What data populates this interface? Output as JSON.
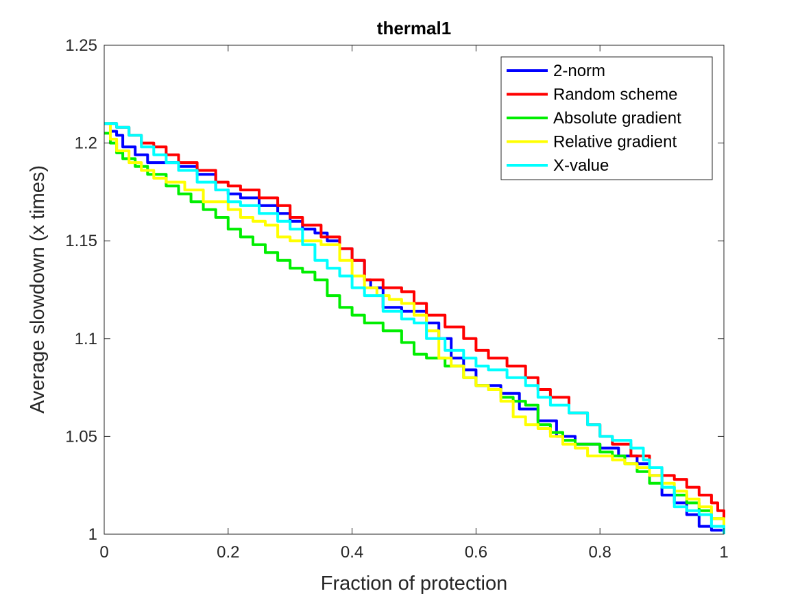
{
  "chart_data": {
    "type": "line",
    "title": "thermal1",
    "xlabel": "Fraction of protection",
    "ylabel": "Average slowdown (x times)",
    "xlim": [
      0,
      1
    ],
    "ylim": [
      1,
      1.25
    ],
    "xticks": [
      0,
      0.2,
      0.4,
      0.6,
      0.8,
      1
    ],
    "xtick_labels": [
      "0",
      "0.2",
      "0.4",
      "0.6",
      "0.8",
      "1"
    ],
    "yticks": [
      1,
      1.05,
      1.1,
      1.15,
      1.2,
      1.25
    ],
    "ytick_labels": [
      "1",
      "1.05",
      "1.1",
      "1.15",
      "1.2",
      "1.25"
    ],
    "grid": false,
    "legend_position": "top-right",
    "series": [
      {
        "name": "2-norm",
        "color": "#0000ff",
        "x": [
          0,
          0.01,
          0.02,
          0.03,
          0.05,
          0.07,
          0.1,
          0.12,
          0.15,
          0.18,
          0.2,
          0.22,
          0.25,
          0.28,
          0.3,
          0.32,
          0.34,
          0.36,
          0.38,
          0.4,
          0.42,
          0.43,
          0.45,
          0.48,
          0.5,
          0.52,
          0.54,
          0.56,
          0.58,
          0.6,
          0.62,
          0.64,
          0.67,
          0.7,
          0.73,
          0.76,
          0.8,
          0.83,
          0.86,
          0.88,
          0.9,
          0.92,
          0.94,
          0.96,
          0.98,
          1.0
        ],
        "y": [
          1.21,
          1.206,
          1.204,
          1.198,
          1.194,
          1.19,
          1.19,
          1.188,
          1.184,
          1.176,
          1.174,
          1.172,
          1.168,
          1.164,
          1.16,
          1.156,
          1.154,
          1.15,
          1.146,
          1.14,
          1.13,
          1.126,
          1.116,
          1.114,
          1.114,
          1.108,
          1.1,
          1.09,
          1.084,
          1.076,
          1.076,
          1.072,
          1.064,
          1.058,
          1.05,
          1.046,
          1.044,
          1.04,
          1.036,
          1.03,
          1.02,
          1.016,
          1.01,
          1.004,
          1.002,
          1.0
        ]
      },
      {
        "name": "Random scheme",
        "color": "#ff0000",
        "x": [
          0,
          0.02,
          0.04,
          0.06,
          0.08,
          0.1,
          0.12,
          0.15,
          0.18,
          0.2,
          0.22,
          0.25,
          0.28,
          0.3,
          0.32,
          0.35,
          0.38,
          0.4,
          0.42,
          0.45,
          0.48,
          0.5,
          0.52,
          0.55,
          0.58,
          0.6,
          0.62,
          0.65,
          0.68,
          0.7,
          0.72,
          0.75,
          0.78,
          0.8,
          0.82,
          0.85,
          0.88,
          0.9,
          0.92,
          0.94,
          0.96,
          0.98,
          0.99,
          1.0
        ],
        "y": [
          1.21,
          1.208,
          1.204,
          1.2,
          1.198,
          1.194,
          1.19,
          1.186,
          1.18,
          1.178,
          1.176,
          1.172,
          1.168,
          1.162,
          1.158,
          1.152,
          1.146,
          1.14,
          1.13,
          1.126,
          1.124,
          1.118,
          1.112,
          1.106,
          1.1,
          1.094,
          1.09,
          1.086,
          1.08,
          1.074,
          1.07,
          1.062,
          1.056,
          1.05,
          1.046,
          1.04,
          1.034,
          1.03,
          1.028,
          1.024,
          1.02,
          1.016,
          1.012,
          1.0
        ]
      },
      {
        "name": "Absolute gradient",
        "color": "#00ee00",
        "x": [
          0,
          0.01,
          0.02,
          0.03,
          0.05,
          0.07,
          0.1,
          0.12,
          0.14,
          0.16,
          0.18,
          0.2,
          0.22,
          0.24,
          0.26,
          0.28,
          0.3,
          0.32,
          0.34,
          0.36,
          0.38,
          0.4,
          0.42,
          0.45,
          0.48,
          0.5,
          0.52,
          0.55,
          0.58,
          0.6,
          0.62,
          0.64,
          0.66,
          0.68,
          0.7,
          0.72,
          0.74,
          0.76,
          0.78,
          0.8,
          0.82,
          0.84,
          0.86,
          0.88,
          0.9,
          0.92,
          0.94,
          0.96,
          0.98,
          1.0
        ],
        "y": [
          1.205,
          1.2,
          1.195,
          1.192,
          1.188,
          1.184,
          1.178,
          1.174,
          1.17,
          1.166,
          1.162,
          1.156,
          1.152,
          1.148,
          1.144,
          1.14,
          1.136,
          1.134,
          1.13,
          1.122,
          1.116,
          1.112,
          1.108,
          1.104,
          1.098,
          1.092,
          1.09,
          1.086,
          1.08,
          1.076,
          1.074,
          1.07,
          1.068,
          1.066,
          1.056,
          1.052,
          1.048,
          1.046,
          1.046,
          1.042,
          1.04,
          1.036,
          1.032,
          1.026,
          1.024,
          1.02,
          1.016,
          1.012,
          1.008,
          1.0
        ]
      },
      {
        "name": "Relative gradient",
        "color": "#ffff00",
        "x": [
          0,
          0.01,
          0.02,
          0.04,
          0.06,
          0.08,
          0.1,
          0.13,
          0.16,
          0.2,
          0.22,
          0.24,
          0.26,
          0.28,
          0.3,
          0.32,
          0.35,
          0.38,
          0.4,
          0.42,
          0.44,
          0.46,
          0.48,
          0.5,
          0.52,
          0.54,
          0.56,
          0.58,
          0.6,
          0.62,
          0.64,
          0.66,
          0.68,
          0.7,
          0.72,
          0.74,
          0.76,
          0.78,
          0.8,
          0.82,
          0.84,
          0.86,
          0.88,
          0.9,
          0.92,
          0.94,
          0.96,
          0.98,
          1.0
        ],
        "y": [
          1.21,
          1.202,
          1.196,
          1.19,
          1.186,
          1.182,
          1.18,
          1.176,
          1.17,
          1.166,
          1.162,
          1.16,
          1.158,
          1.152,
          1.15,
          1.15,
          1.148,
          1.14,
          1.132,
          1.126,
          1.122,
          1.12,
          1.118,
          1.112,
          1.104,
          1.09,
          1.086,
          1.08,
          1.076,
          1.074,
          1.068,
          1.06,
          1.056,
          1.054,
          1.05,
          1.046,
          1.044,
          1.04,
          1.04,
          1.038,
          1.036,
          1.034,
          1.03,
          1.026,
          1.022,
          1.018,
          1.014,
          1.008,
          1.0
        ]
      },
      {
        "name": "X-value",
        "color": "#00ffff",
        "x": [
          0,
          0.02,
          0.04,
          0.06,
          0.08,
          0.1,
          0.12,
          0.15,
          0.18,
          0.2,
          0.22,
          0.25,
          0.28,
          0.3,
          0.32,
          0.34,
          0.36,
          0.38,
          0.4,
          0.42,
          0.45,
          0.48,
          0.5,
          0.52,
          0.55,
          0.58,
          0.6,
          0.62,
          0.65,
          0.68,
          0.7,
          0.72,
          0.75,
          0.78,
          0.8,
          0.82,
          0.85,
          0.87,
          0.88,
          0.9,
          0.92,
          0.94,
          0.96,
          0.98,
          1.0
        ],
        "y": [
          1.21,
          1.208,
          1.204,
          1.198,
          1.194,
          1.19,
          1.186,
          1.18,
          1.176,
          1.17,
          1.168,
          1.164,
          1.16,
          1.156,
          1.148,
          1.14,
          1.136,
          1.132,
          1.126,
          1.122,
          1.114,
          1.11,
          1.108,
          1.1,
          1.094,
          1.09,
          1.086,
          1.084,
          1.08,
          1.076,
          1.07,
          1.066,
          1.062,
          1.056,
          1.05,
          1.048,
          1.044,
          1.038,
          1.034,
          1.024,
          1.014,
          1.012,
          1.01,
          1.004,
          1.0
        ]
      }
    ]
  }
}
